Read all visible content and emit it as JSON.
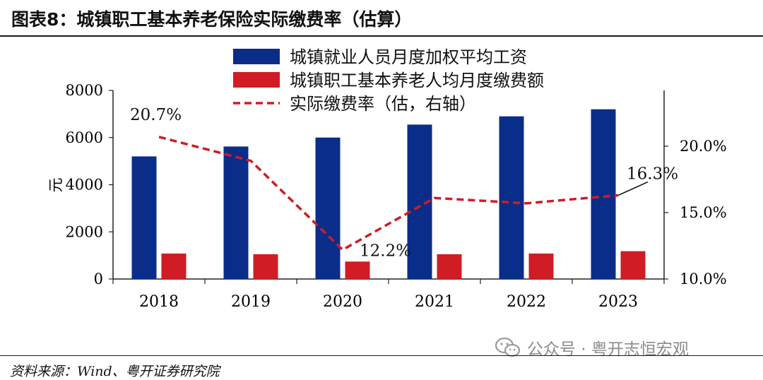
{
  "title": "图表8：城镇职工基本养老保险实际缴费率（估算）",
  "source": "资料来源：Wind、粤开证券研究院",
  "watermark": {
    "icon": "wechat-icon",
    "text": "公众号 · 粤开志恒宏观"
  },
  "colors": {
    "wage": "#0b2d8a",
    "contribution": "#d01c24",
    "rate": "#d01c24"
  },
  "chart_data": {
    "type": "bar",
    "categories": [
      "2018",
      "2019",
      "2020",
      "2021",
      "2022",
      "2023"
    ],
    "ylabel": "元",
    "ylim": [
      0,
      8000
    ],
    "yticks": [
      "0",
      "2000",
      "4000",
      "6000",
      "8000"
    ],
    "y2lim": [
      10.0,
      24.2
    ],
    "y2ticks": [
      10.0,
      15.0,
      20.0
    ],
    "y2tick_labels": [
      "10.0%",
      "15.0%",
      "20.0%"
    ],
    "series": [
      {
        "name": "城镇就业人员月度加权平均工资",
        "kind": "bar",
        "axis": "left",
        "values": [
          5200,
          5620,
          6000,
          6550,
          6900,
          7200
        ]
      },
      {
        "name": "城镇职工基本养老人均月度缴费额",
        "kind": "bar",
        "axis": "left",
        "values": [
          1080,
          1050,
          740,
          1050,
          1080,
          1180
        ]
      },
      {
        "name": "实际缴费率（估，右轴）",
        "kind": "line",
        "style": "dashed",
        "axis": "right",
        "values": [
          20.7,
          18.9,
          12.2,
          16.1,
          15.7,
          16.3
        ]
      }
    ],
    "annotations": [
      {
        "label": "20.7%",
        "category": "2018"
      },
      {
        "label": "12.2%",
        "category": "2020"
      },
      {
        "label": "16.3%",
        "category": "2023"
      }
    ],
    "legend_position": "top-center",
    "grid": false
  }
}
